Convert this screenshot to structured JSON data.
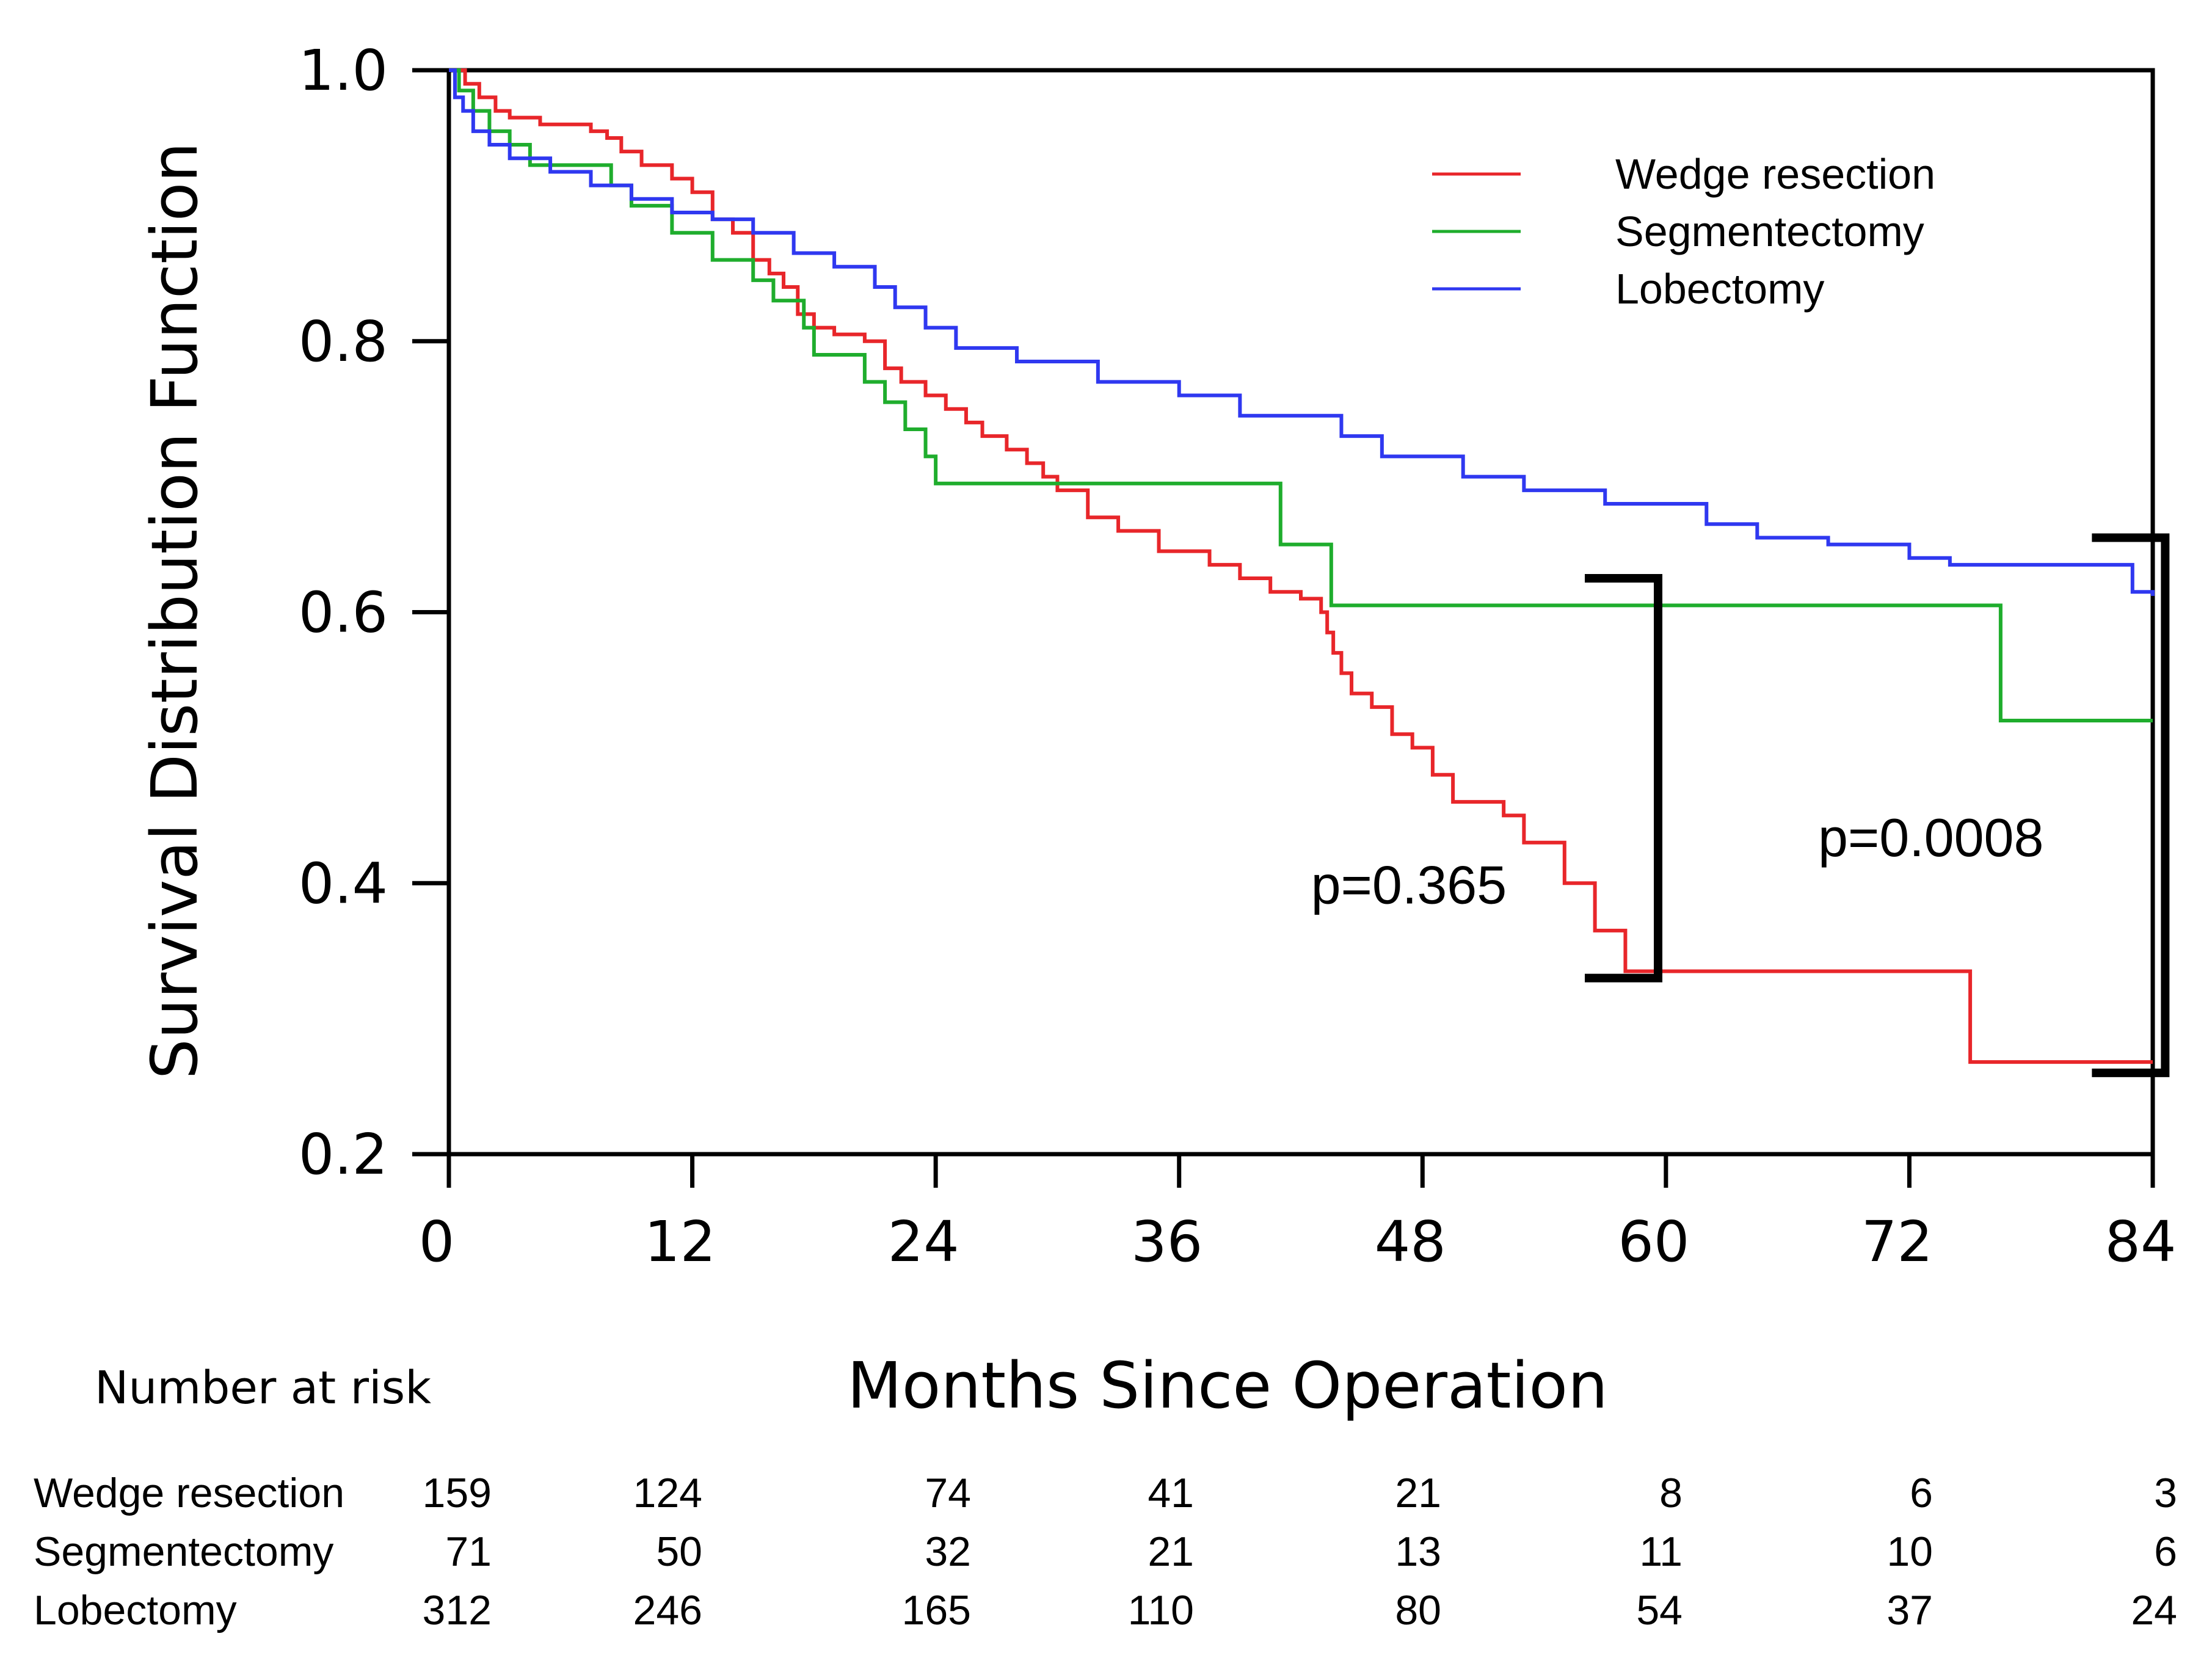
{
  "chart_data": {
    "type": "line",
    "subtype": "kaplan-meier",
    "title": "",
    "xlabel": "Months Since Operation",
    "ylabel": "Survival Distribution Function",
    "xlim": [
      0,
      84
    ],
    "ylim": [
      0.2,
      1.0
    ],
    "xticks": [
      0,
      12,
      24,
      36,
      48,
      60,
      72,
      84
    ],
    "yticks": [
      0.2,
      0.4,
      0.6,
      0.8,
      1.0
    ],
    "xtick_labels": [
      "0",
      "12",
      "24",
      "36",
      "48",
      "60",
      "72",
      "84"
    ],
    "ytick_labels": [
      "0.2",
      "0.4",
      "0.6",
      "0.8",
      "1.0"
    ],
    "legend_position": "top-right",
    "series": [
      {
        "name": "Wedge resection",
        "color": "#e8262a",
        "x": [
          0,
          0.8,
          1.5,
          2.3,
          3.0,
          4.5,
          7.0,
          7.8,
          8.5,
          9.5,
          11.0,
          12.0,
          13.0,
          14.0,
          15.0,
          15.8,
          16.5,
          17.2,
          18.0,
          19.0,
          20.5,
          21.5,
          22.3,
          23.5,
          24.5,
          25.5,
          26.3,
          27.5,
          28.5,
          29.3,
          30.0,
          31.5,
          33.0,
          35.0,
          37.5,
          39.0,
          40.5,
          42.0,
          43.0,
          43.3,
          43.6,
          44.0,
          44.5,
          45.5,
          46.5,
          47.5,
          48.5,
          49.5,
          52.0,
          53.0,
          55.0,
          56.5,
          58.0,
          73.0,
          75.0,
          84.0
        ],
        "y": [
          1.0,
          0.99,
          0.98,
          0.97,
          0.965,
          0.96,
          0.955,
          0.95,
          0.94,
          0.93,
          0.92,
          0.91,
          0.89,
          0.88,
          0.86,
          0.85,
          0.84,
          0.82,
          0.81,
          0.805,
          0.8,
          0.78,
          0.77,
          0.76,
          0.75,
          0.74,
          0.73,
          0.72,
          0.71,
          0.7,
          0.69,
          0.67,
          0.66,
          0.645,
          0.635,
          0.625,
          0.615,
          0.61,
          0.6,
          0.585,
          0.57,
          0.555,
          0.54,
          0.53,
          0.51,
          0.5,
          0.48,
          0.46,
          0.45,
          0.43,
          0.4,
          0.365,
          0.335,
          0.335,
          0.268,
          0.268
        ]
      },
      {
        "name": "Segmentectomy",
        "color": "#1fad2d",
        "x": [
          0,
          0.5,
          1.2,
          2.0,
          3.0,
          4.0,
          8.0,
          9.0,
          11.0,
          13.0,
          15.0,
          16.0,
          17.5,
          18.0,
          20.5,
          21.5,
          22.5,
          23.5,
          24.0,
          41.0,
          43.5,
          76.5,
          84.0
        ],
        "y": [
          1.0,
          0.985,
          0.97,
          0.955,
          0.945,
          0.93,
          0.915,
          0.9,
          0.88,
          0.86,
          0.845,
          0.83,
          0.81,
          0.79,
          0.77,
          0.755,
          0.735,
          0.715,
          0.695,
          0.65,
          0.605,
          0.52,
          0.52
        ]
      },
      {
        "name": "Lobectomy",
        "color": "#2f38f0",
        "x": [
          0,
          0.3,
          0.7,
          1.2,
          2.0,
          3.0,
          5.0,
          7.0,
          9.0,
          11.0,
          13.0,
          15.0,
          17.0,
          19.0,
          21.0,
          22.0,
          23.5,
          25.0,
          28.0,
          32.0,
          36.0,
          39.0,
          44.0,
          46.0,
          50.0,
          53.0,
          57.0,
          62.0,
          64.5,
          68.0,
          72.0,
          74.0,
          78.0,
          83.0,
          84.0
        ],
        "y": [
          1.0,
          0.98,
          0.97,
          0.955,
          0.945,
          0.935,
          0.925,
          0.915,
          0.905,
          0.895,
          0.89,
          0.88,
          0.865,
          0.855,
          0.84,
          0.825,
          0.81,
          0.795,
          0.785,
          0.77,
          0.76,
          0.745,
          0.73,
          0.715,
          0.7,
          0.69,
          0.68,
          0.665,
          0.655,
          0.65,
          0.64,
          0.635,
          0.635,
          0.615,
          0.612
        ]
      }
    ],
    "annotations": [
      {
        "text": "p=0.365",
        "x_from": 56.0,
        "y_from": 0.625,
        "y_to": 0.33,
        "label_x": 42.5,
        "label_y": 0.385
      },
      {
        "text": "p=0.0008",
        "x_from": 81.0,
        "y_from": 0.655,
        "y_to": 0.26,
        "label_x": 67.5,
        "label_y": 0.42
      }
    ],
    "risk_table": {
      "title": "Number at risk",
      "times": [
        0,
        12,
        24,
        36,
        48,
        60,
        72,
        84
      ],
      "rows": [
        {
          "name": "Wedge resection",
          "counts": [
            "159",
            "124",
            "74",
            "41",
            "21",
            "8",
            "6",
            "3"
          ]
        },
        {
          "name": "Segmentectomy",
          "counts": [
            "71",
            "50",
            "32",
            "21",
            "13",
            "11",
            "10",
            "6"
          ]
        },
        {
          "name": "Lobectomy",
          "counts": [
            "312",
            "246",
            "165",
            "110",
            "80",
            "54",
            "37",
            "24"
          ]
        }
      ]
    }
  }
}
